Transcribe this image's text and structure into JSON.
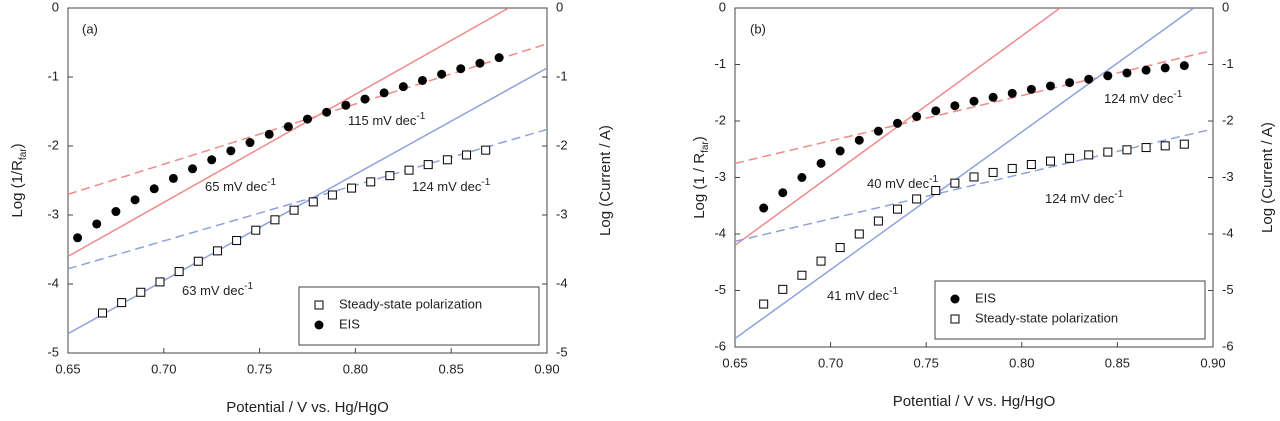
{
  "chart_data": [
    {
      "type": "scatter",
      "panel_label": "(a)",
      "xlabel": "Potential / V vs. Hg/HgO",
      "ylabel": {
        "text": "Log (1/R",
        "sub": "far",
        "end": ")"
      },
      "y2label": "Log (Current / A)",
      "xlim": [
        0.65,
        0.9
      ],
      "xticks": [
        0.65,
        {
          "value": 0.7,
          "label": "0.70"
        },
        0.75,
        {
          "value": 0.8,
          "label": "0.80"
        },
        0.85,
        {
          "value": 0.9,
          "label": "0.90"
        }
      ],
      "ylim": [
        -5,
        0
      ],
      "yticks": [
        -5,
        -4,
        -3,
        -2,
        -1,
        0
      ],
      "y2lim": [
        -5,
        0
      ],
      "y2ticks": [
        -5,
        -4,
        -3,
        -2,
        -1,
        0
      ],
      "legend": "lower right",
      "series": [
        {
          "type": "line",
          "color": "#f08a8a",
          "dash": false,
          "x": [
            0.65,
            0.88
          ],
          "values": [
            -3.6,
            0
          ]
        },
        {
          "type": "line",
          "color": "#f08a8a",
          "dash": true,
          "x": [
            0.65,
            0.9
          ],
          "values": [
            -2.7,
            -0.52
          ]
        },
        {
          "type": "line",
          "color": "#8fa2dc",
          "dash": false,
          "x": [
            0.65,
            0.9
          ],
          "values": [
            -4.72,
            -0.87
          ]
        },
        {
          "type": "line",
          "color": "#8fa2dc",
          "dash": true,
          "x": [
            0.65,
            0.9
          ],
          "values": [
            -3.78,
            -1.76
          ]
        },
        {
          "type": "scatter",
          "name": "Steady-state polarization",
          "marker": "square",
          "color": "#000000",
          "x": [
            0.668,
            0.678,
            0.688,
            0.698,
            0.708,
            0.718,
            0.728,
            0.738,
            0.748,
            0.758,
            0.768,
            0.778,
            0.788,
            0.798,
            0.808,
            0.818,
            0.828,
            0.838,
            0.848,
            0.858,
            0.868
          ],
          "values": [
            -4.42,
            -4.27,
            -4.12,
            -3.97,
            -3.82,
            -3.67,
            -3.52,
            -3.37,
            -3.22,
            -3.07,
            -2.93,
            -2.81,
            -2.71,
            -2.61,
            -2.52,
            -2.43,
            -2.35,
            -2.27,
            -2.2,
            -2.13,
            -2.06
          ]
        },
        {
          "type": "scatter",
          "name": "EIS",
          "marker": "circle",
          "color": "#000000",
          "x": [
            0.655,
            0.665,
            0.675,
            0.685,
            0.695,
            0.705,
            0.715,
            0.725,
            0.735,
            0.745,
            0.755,
            0.765,
            0.775,
            0.785,
            0.795,
            0.805,
            0.815,
            0.825,
            0.835,
            0.845,
            0.855,
            0.865,
            0.875
          ],
          "values": [
            -3.33,
            -3.13,
            -2.95,
            -2.78,
            -2.62,
            -2.47,
            -2.33,
            -2.2,
            -2.07,
            -1.95,
            -1.83,
            -1.72,
            -1.61,
            -1.51,
            -1.41,
            -1.32,
            -1.23,
            -1.14,
            -1.05,
            -0.96,
            -0.88,
            -0.8,
            -0.72
          ]
        }
      ],
      "annotations": [
        {
          "text": "115 mV dec",
          "sup": "-1"
        },
        {
          "text": "65 mV dec",
          "sup": "-1"
        },
        {
          "text": "124 mV dec",
          "sup": "-1"
        },
        {
          "text": "63 mV dec",
          "sup": "-1"
        }
      ]
    },
    {
      "type": "scatter",
      "panel_label": "(b)",
      "xlabel": "Potential / V vs. Hg/HgO",
      "ylabel": {
        "text": "Log (1 / R",
        "sub": "far",
        "end": ")"
      },
      "y2label": "Log (Current / A)",
      "xlim": [
        0.65,
        0.9
      ],
      "xticks": [
        0.65,
        {
          "value": 0.7,
          "label": "0.70"
        },
        0.75,
        {
          "value": 0.8,
          "label": "0.80"
        },
        0.85,
        {
          "value": 0.9,
          "label": "0.90"
        }
      ],
      "ylim": [
        -6,
        0
      ],
      "yticks": [
        -6,
        -5,
        -4,
        -3,
        -2,
        -1,
        0
      ],
      "y2lim": [
        -6,
        0
      ],
      "y2ticks": [
        -6,
        -5,
        -4,
        -3,
        -2,
        -1,
        0
      ],
      "legend": "lower right",
      "series": [
        {
          "type": "line",
          "color": "#f08a8a",
          "dash": false,
          "x": [
            0.65,
            0.82
          ],
          "values": [
            -4.2,
            0
          ]
        },
        {
          "type": "line",
          "color": "#f08a8a",
          "dash": true,
          "x": [
            0.65,
            0.9
          ],
          "values": [
            -2.75,
            -0.75
          ]
        },
        {
          "type": "line",
          "color": "#8fa2dc",
          "dash": false,
          "x": [
            0.65,
            0.89
          ],
          "values": [
            -5.85,
            0
          ]
        },
        {
          "type": "line",
          "color": "#8fa2dc",
          "dash": true,
          "x": [
            0.65,
            0.9
          ],
          "values": [
            -4.13,
            -2.14
          ]
        },
        {
          "type": "scatter",
          "name": "EIS",
          "marker": "circle",
          "color": "#000000",
          "x": [
            0.665,
            0.675,
            0.685,
            0.695,
            0.705,
            0.715,
            0.725,
            0.735,
            0.745,
            0.755,
            0.765,
            0.775,
            0.785,
            0.795,
            0.805,
            0.815,
            0.825,
            0.835,
            0.845,
            0.855,
            0.865,
            0.875,
            0.885
          ],
          "values": [
            -3.54,
            -3.27,
            -3.0,
            -2.75,
            -2.53,
            -2.34,
            -2.18,
            -2.04,
            -1.92,
            -1.82,
            -1.73,
            -1.65,
            -1.58,
            -1.51,
            -1.44,
            -1.38,
            -1.32,
            -1.26,
            -1.2,
            -1.15,
            -1.1,
            -1.06,
            -1.02
          ]
        },
        {
          "type": "scatter",
          "name": "Steady-state polarization",
          "marker": "square",
          "color": "#000000",
          "x": [
            0.665,
            0.675,
            0.685,
            0.695,
            0.705,
            0.715,
            0.725,
            0.735,
            0.745,
            0.755,
            0.765,
            0.775,
            0.785,
            0.795,
            0.805,
            0.815,
            0.825,
            0.835,
            0.845,
            0.855,
            0.865,
            0.875,
            0.885
          ],
          "values": [
            -5.24,
            -4.98,
            -4.73,
            -4.48,
            -4.24,
            -4.0,
            -3.77,
            -3.56,
            -3.38,
            -3.23,
            -3.1,
            -2.99,
            -2.91,
            -2.84,
            -2.77,
            -2.71,
            -2.66,
            -2.6,
            -2.55,
            -2.51,
            -2.47,
            -2.44,
            -2.41
          ]
        }
      ],
      "annotations": [
        {
          "text": "40 mV dec",
          "sup": "-1"
        },
        {
          "text": "124 mV dec",
          "sup": "-1"
        },
        {
          "text": "124 mV dec",
          "sup": "-1"
        },
        {
          "text": "41 mV dec",
          "sup": "-1"
        }
      ]
    }
  ]
}
